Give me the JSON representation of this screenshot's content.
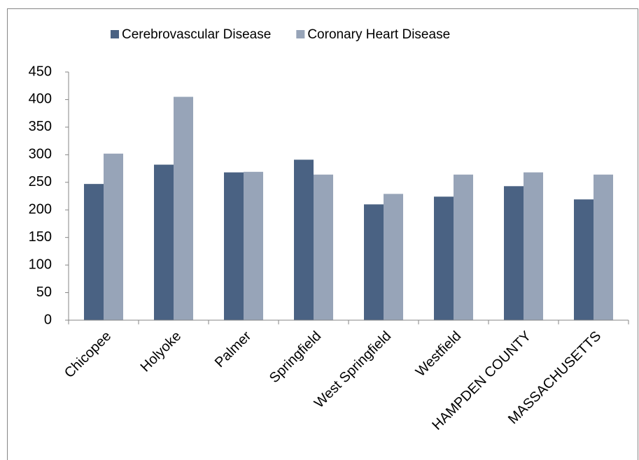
{
  "chart_data": {
    "type": "bar",
    "categories": [
      "Chicopee",
      "Holyoke",
      "Palmer",
      "Springfield",
      "West Springfield",
      "Westfield",
      "HAMPDEN COUNTY",
      "MASSACHUSETTS"
    ],
    "series": [
      {
        "name": "Cerebrovascular Disease",
        "color": "#4a6283",
        "values": [
          247,
          282,
          268,
          291,
          210,
          224,
          243,
          219
        ]
      },
      {
        "name": "Coronary Heart Disease",
        "color": "#97a4b8",
        "values": [
          302,
          405,
          269,
          264,
          229,
          264,
          268,
          264
        ]
      }
    ],
    "ylim": [
      0,
      450
    ],
    "yticks": [
      0,
      50,
      100,
      150,
      200,
      250,
      300,
      350,
      400,
      450
    ],
    "legend": "top",
    "grid": false
  }
}
